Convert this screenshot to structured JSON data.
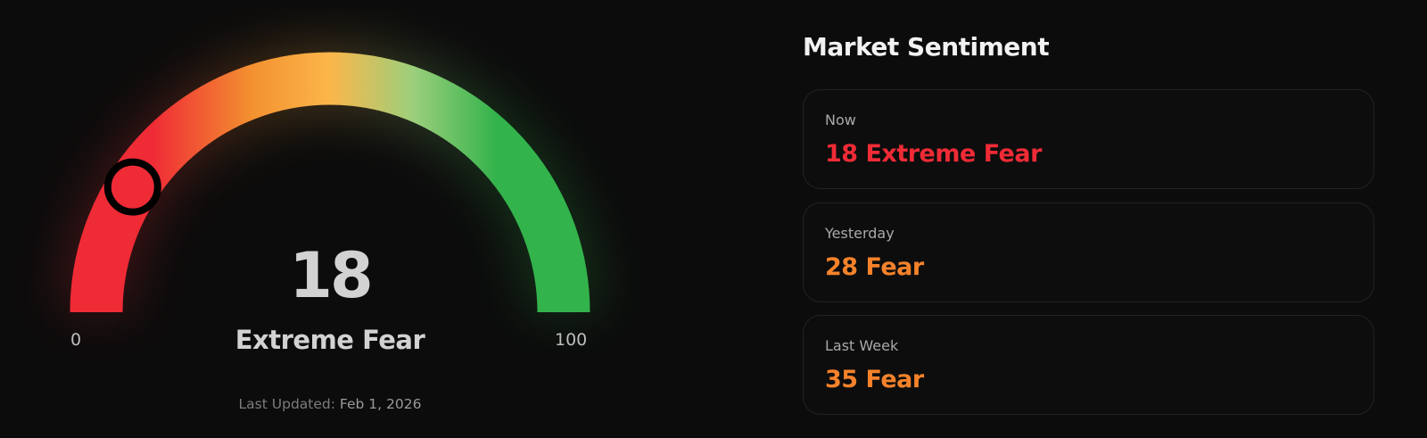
{
  "gauge": {
    "value": 18,
    "min_label": "0",
    "max_label": "100",
    "score": "18",
    "classification": "Extreme Fear",
    "last_updated_label": "Last Updated:",
    "last_updated_date": "Feb 1, 2026",
    "marker_color": "#ef2b36",
    "gradient_colors": [
      "#ef2b36",
      "#f39130",
      "#fbb64a",
      "#9ccf7c",
      "#33b34b"
    ]
  },
  "sentiment": {
    "title": "Market Sentiment",
    "cards": [
      {
        "label": "Now",
        "value": "18 Extreme Fear",
        "color": "#ef2b36"
      },
      {
        "label": "Yesterday",
        "value": "28 Fear",
        "color": "#f5822a"
      },
      {
        "label": "Last Week",
        "value": "35 Fear",
        "color": "#f5822a"
      }
    ]
  }
}
